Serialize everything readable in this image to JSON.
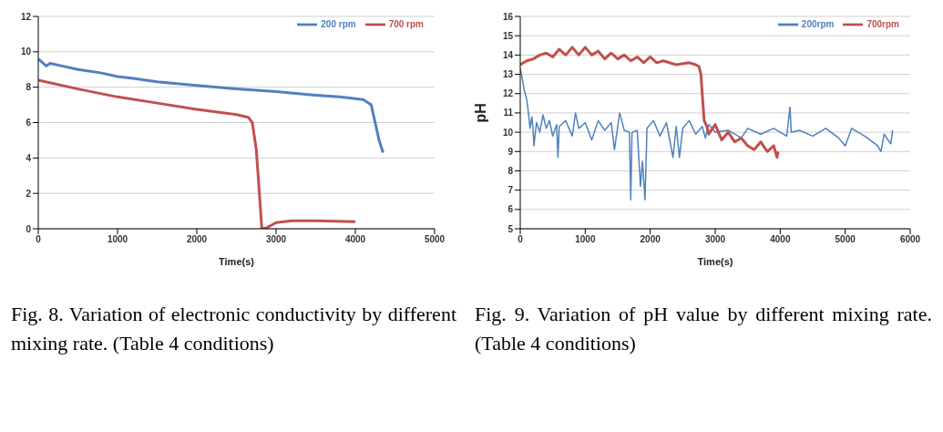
{
  "chart_data": [
    {
      "type": "line",
      "xlabel": "Time(s)",
      "xlim": [
        0,
        5000
      ],
      "xticks": [
        0,
        1000,
        2000,
        3000,
        4000,
        5000
      ],
      "ylim": [
        0,
        12
      ],
      "yticks": [
        0,
        2,
        4,
        6,
        8,
        10,
        12
      ],
      "grid": "y",
      "legend": "top right",
      "annotations": [
        "Fig. 8. Variation of electronic conductivity by different mixing rate. (Table 4 conditions)"
      ],
      "series": [
        {
          "name": "200 rpm",
          "color": "#4f81bd",
          "x": [
            0,
            50,
            100,
            150,
            300,
            500,
            800,
            1000,
            1200,
            1500,
            2000,
            2500,
            3000,
            3500,
            3800,
            4000,
            4100,
            4200,
            4250,
            4300,
            4350
          ],
          "values": [
            9.6,
            9.4,
            9.2,
            9.35,
            9.2,
            9.0,
            8.8,
            8.6,
            8.5,
            8.3,
            8.1,
            7.9,
            7.75,
            7.55,
            7.45,
            7.35,
            7.3,
            7.0,
            6.0,
            5.0,
            4.3
          ]
        },
        {
          "name": "700 rpm",
          "color": "#c0504d",
          "x": [
            0,
            500,
            1000,
            1500,
            2000,
            2500,
            2650,
            2700,
            2750,
            2790,
            2820,
            2880,
            3000,
            3200,
            3500,
            4000
          ],
          "values": [
            8.4,
            7.9,
            7.45,
            7.1,
            6.75,
            6.45,
            6.3,
            6.0,
            4.5,
            2.0,
            0.0,
            0.05,
            0.35,
            0.45,
            0.45,
            0.4
          ]
        }
      ]
    },
    {
      "type": "line",
      "xlabel": "Time(s)",
      "ylabel": "pH",
      "xlim": [
        0,
        6000
      ],
      "xticks": [
        0,
        1000,
        2000,
        3000,
        4000,
        5000,
        6000
      ],
      "ylim": [
        5,
        16
      ],
      "yticks": [
        5,
        6,
        7,
        8,
        9,
        10,
        11,
        12,
        13,
        14,
        15,
        16
      ],
      "grid": "y",
      "legend": "top right",
      "annotations": [
        "Fig. 9. Variation of pH value by different mixing rate. (Table 4 conditions)"
      ],
      "series": [
        {
          "name": "200rpm",
          "color": "#4f81bd",
          "x": [
            0,
            30,
            60,
            100,
            130,
            150,
            180,
            200,
            210,
            250,
            300,
            350,
            400,
            450,
            500,
            560,
            580,
            600,
            700,
            800,
            850,
            900,
            1000,
            1100,
            1200,
            1300,
            1400,
            1450,
            1500,
            1530,
            1600,
            1680,
            1700,
            1720,
            1800,
            1850,
            1880,
            1920,
            1950,
            2050,
            2150,
            2250,
            2350,
            2400,
            2450,
            2500,
            2600,
            2700,
            2800,
            2850,
            2900,
            3000,
            3200,
            3400,
            3500,
            3700,
            3900,
            4100,
            4150,
            4170,
            4300,
            4500,
            4700,
            4900,
            5000,
            5100,
            5300,
            5500,
            5550,
            5600,
            5700,
            5730
          ],
          "values": [
            13.3,
            12.8,
            12.2,
            11.7,
            10.9,
            10.2,
            10.8,
            10.0,
            9.3,
            10.5,
            10.0,
            10.9,
            10.2,
            10.6,
            9.8,
            10.4,
            8.7,
            10.3,
            10.6,
            9.8,
            11.0,
            10.2,
            10.5,
            9.6,
            10.6,
            10.1,
            10.5,
            9.1,
            10.3,
            11.0,
            10.1,
            10.0,
            6.5,
            10.0,
            10.1,
            7.2,
            8.5,
            6.5,
            10.2,
            10.6,
            9.8,
            10.5,
            8.7,
            10.3,
            8.7,
            10.2,
            10.6,
            9.9,
            10.3,
            9.7,
            10.4,
            10.0,
            10.1,
            9.7,
            10.2,
            9.9,
            10.2,
            9.8,
            11.3,
            10.0,
            10.1,
            9.8,
            10.2,
            9.7,
            9.3,
            10.2,
            9.8,
            9.3,
            9.0,
            9.9,
            9.4,
            10.1
          ]
        },
        {
          "name": "700rpm",
          "color": "#c0504d",
          "x": [
            0,
            100,
            200,
            300,
            400,
            500,
            600,
            700,
            800,
            900,
            1000,
            1100,
            1200,
            1300,
            1400,
            1500,
            1600,
            1700,
            1800,
            1900,
            2000,
            2100,
            2200,
            2400,
            2600,
            2700,
            2750,
            2780,
            2800,
            2830,
            2870,
            2900,
            3000,
            3100,
            3200,
            3300,
            3400,
            3500,
            3600,
            3700,
            3800,
            3900,
            3950,
            3970
          ],
          "values": [
            13.5,
            13.7,
            13.8,
            14.0,
            14.1,
            13.9,
            14.3,
            14.0,
            14.4,
            14.0,
            14.4,
            14.0,
            14.2,
            13.8,
            14.1,
            13.8,
            14.0,
            13.7,
            13.9,
            13.6,
            13.9,
            13.6,
            13.7,
            13.5,
            13.6,
            13.5,
            13.4,
            13.0,
            12.0,
            10.6,
            10.3,
            9.9,
            10.4,
            9.6,
            10.0,
            9.5,
            9.7,
            9.3,
            9.1,
            9.5,
            9.0,
            9.3,
            8.7,
            9.0
          ]
        }
      ]
    }
  ]
}
